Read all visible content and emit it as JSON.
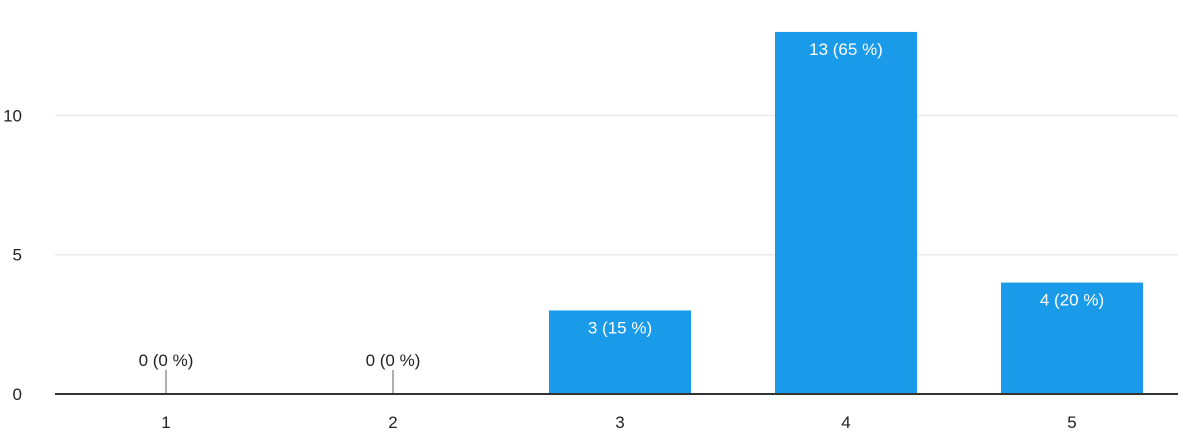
{
  "chart_data": {
    "type": "bar",
    "categories": [
      "1",
      "2",
      "3",
      "4",
      "5"
    ],
    "values": [
      0,
      0,
      3,
      13,
      4
    ],
    "data_labels": [
      "0 (0 %)",
      "0 (0 %)",
      "3 (15 %)",
      "13 (65 %)",
      "4 (20 %)"
    ],
    "y_ticks": [
      0,
      5,
      10
    ],
    "ylim": [
      0,
      13.5
    ],
    "grid": true,
    "title": "",
    "xlabel": "",
    "ylabel": ""
  },
  "colors": {
    "bar": "#1a9bea",
    "grid": "#ebebeb",
    "axis": "#333333",
    "text": "#222222",
    "label_inside": "#ffffff"
  }
}
